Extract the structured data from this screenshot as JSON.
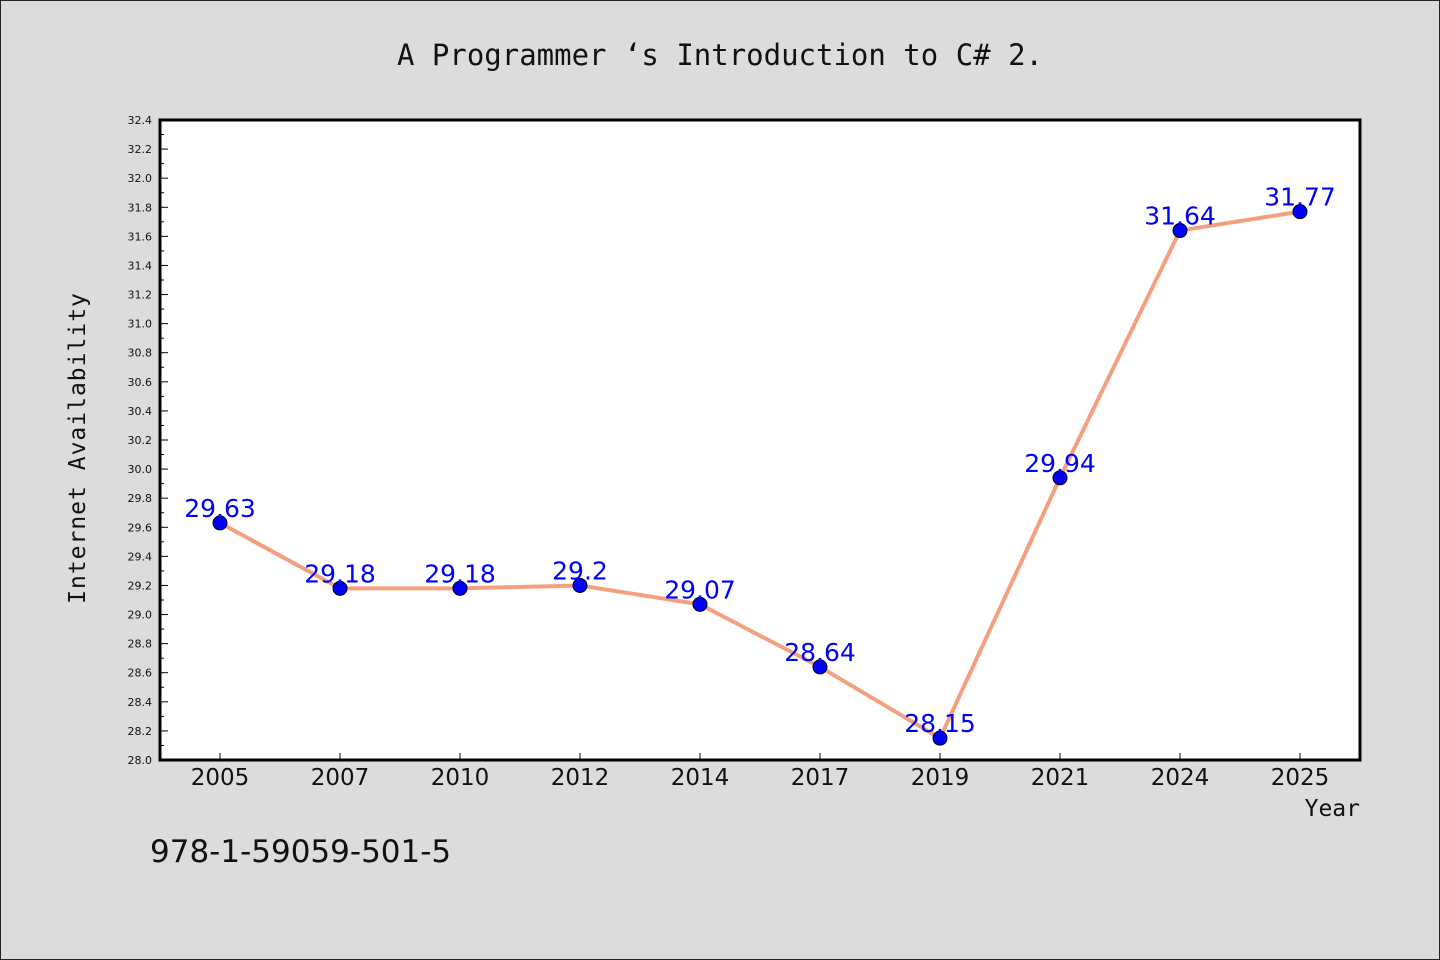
{
  "chart_data": {
    "type": "line",
    "title": "A Programmer ‘s Introduction to C# 2.",
    "xlabel": "Year",
    "ylabel": "Internet Availability",
    "categories": [
      "2005",
      "2007",
      "2010",
      "2012",
      "2014",
      "2017",
      "2019",
      "2021",
      "2024",
      "2025"
    ],
    "series": [
      {
        "values": [
          29.63,
          29.18,
          29.18,
          29.2,
          29.07,
          28.64,
          28.15,
          29.94,
          31.64,
          31.77
        ],
        "labels": [
          "29.63",
          "29.18",
          "29.18",
          "29.2",
          "29.07",
          "28.64",
          "28.15",
          "29.94",
          "31.64",
          "31.77"
        ],
        "line_color": "#f4a07f",
        "marker_color": "#0000ff"
      }
    ],
    "ylim": [
      28.0,
      32.4
    ],
    "yticks": [
      "28.0",
      "28.2",
      "28.4",
      "28.6",
      "28.8",
      "29.0",
      "29.2",
      "29.4",
      "29.6",
      "29.8",
      "30.0",
      "30.2",
      "30.4",
      "30.6",
      "30.8",
      "31.0",
      "31.2",
      "31.4",
      "31.6",
      "31.8",
      "32.0",
      "32.2",
      "32.4"
    ],
    "grid": false,
    "legend": "none",
    "annotation": "978-1-59059-501-5",
    "background_color": "#dcdcdc",
    "plot_background_color": "#ffffff"
  }
}
